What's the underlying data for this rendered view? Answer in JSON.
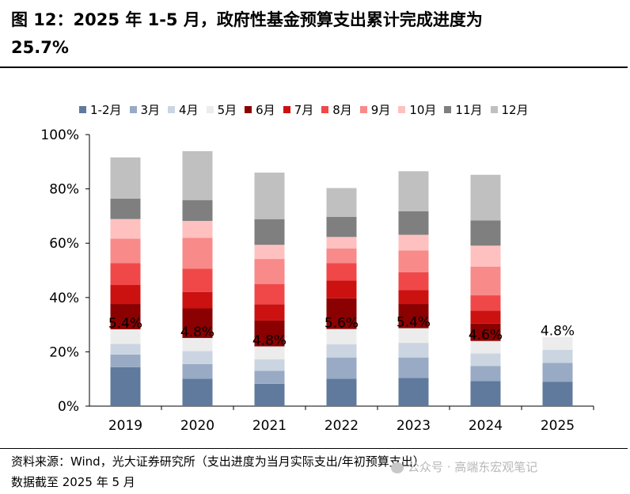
{
  "header": {
    "title_line1": "图 12：2025 年 1-5 月，政府性基金预算支出累计完成进度为",
    "title_line2": "25.7%"
  },
  "chart_data": {
    "type": "bar",
    "stacked": true,
    "categories": [
      "2019",
      "2020",
      "2021",
      "2022",
      "2023",
      "2024",
      "2025"
    ],
    "ylim": [
      0,
      100
    ],
    "yticks": [
      0,
      20,
      40,
      60,
      80,
      100
    ],
    "ytick_labels": [
      "0%",
      "20%",
      "40%",
      "60%",
      "80%",
      "100%"
    ],
    "legend_position": "top",
    "grid": false,
    "series": [
      {
        "name": "1-2月",
        "color": "#5f7a9c",
        "values": [
          14.3,
          10.1,
          8.2,
          10.1,
          10.4,
          9.2,
          9.0
        ]
      },
      {
        "name": "3月",
        "color": "#98aac4",
        "values": [
          4.7,
          5.4,
          4.8,
          7.8,
          7.5,
          5.6,
          6.9
        ]
      },
      {
        "name": "4月",
        "color": "#cbd5e1",
        "values": [
          3.9,
          4.8,
          4.2,
          4.9,
          5.4,
          4.6,
          4.8
        ]
      },
      {
        "name": "5月",
        "color": "#ececec",
        "values": [
          5.4,
          4.8,
          4.8,
          5.6,
          5.4,
          4.6,
          4.8
        ]
      },
      {
        "name": "6月",
        "color": "#8b0000",
        "values": [
          9.3,
          10.9,
          9.5,
          11.3,
          8.9,
          6.4,
          null
        ]
      },
      {
        "name": "7月",
        "color": "#cc1111",
        "values": [
          7.0,
          6.0,
          6.0,
          6.5,
          5.1,
          4.8,
          null
        ]
      },
      {
        "name": "8月",
        "color": "#f04848",
        "values": [
          8.1,
          8.6,
          7.5,
          6.5,
          6.6,
          5.6,
          null
        ]
      },
      {
        "name": "9月",
        "color": "#f88a8a",
        "values": [
          9.0,
          11.4,
          9.2,
          5.4,
          8.0,
          10.6,
          null
        ]
      },
      {
        "name": "10月",
        "color": "#ffc0c0",
        "values": [
          7.2,
          6.2,
          5.2,
          4.2,
          5.8,
          7.7,
          null
        ]
      },
      {
        "name": "11月",
        "color": "#7f7f7f",
        "values": [
          7.5,
          7.7,
          9.4,
          7.4,
          8.7,
          9.3,
          null
        ]
      },
      {
        "name": "12月",
        "color": "#c0c0c0",
        "values": [
          15.2,
          18.0,
          17.2,
          10.6,
          14.7,
          16.8,
          null
        ]
      }
    ],
    "data_labels": [
      "5.4%",
      "4.8%",
      "4.8%",
      "5.6%",
      "5.4%",
      "4.6%",
      "4.8%"
    ]
  },
  "footer": {
    "source_line1": "资料来源：Wind，光大证券研究所（支出进度为当月实际支出/年初预算支出）",
    "source_line2": "数据截至 2025 年 5 月"
  },
  "watermark": {
    "text": "公众号 · 高端东宏观笔记"
  }
}
